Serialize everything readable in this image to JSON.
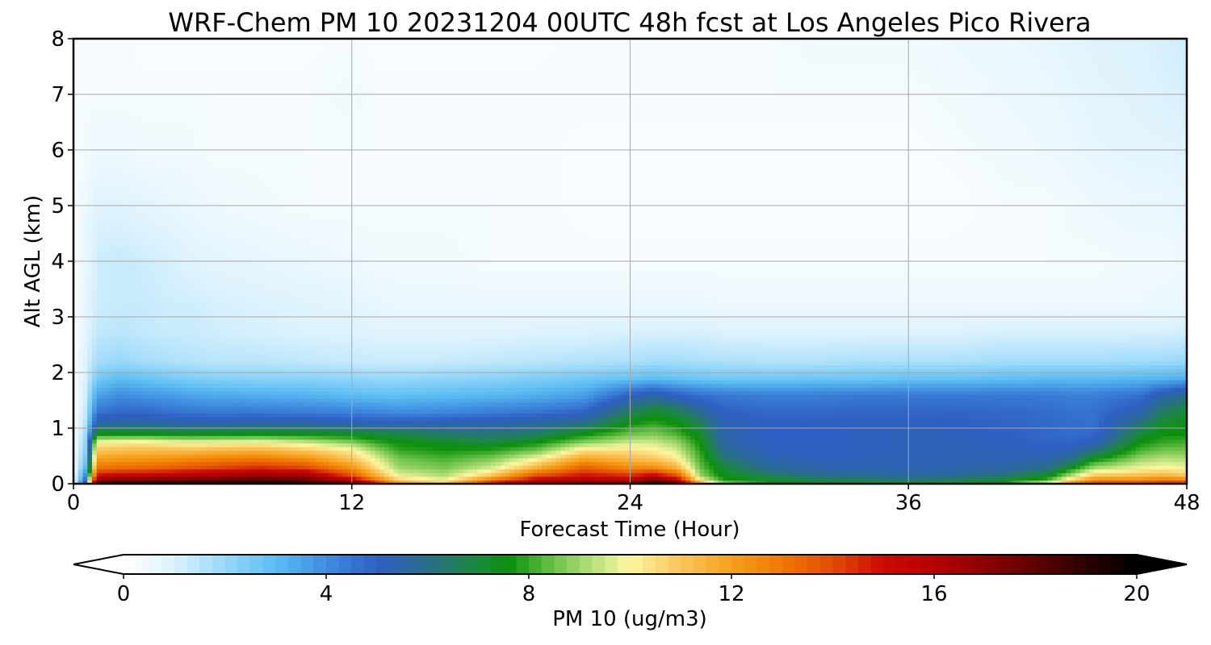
{
  "chart_data": {
    "type": "heatmap",
    "title": "WRF-Chem PM 10  20231204 00UTC 48h fcst at Los Angeles Pico Rivera",
    "xlabel": "Forecast Time (Hour)",
    "ylabel": "Alt AGL (km)",
    "xlim": [
      0,
      48
    ],
    "ylim": [
      0,
      8
    ],
    "xticks": [
      "0",
      "12",
      "24",
      "36",
      "48"
    ],
    "yticks": [
      "0",
      "1",
      "2",
      "3",
      "4",
      "5",
      "6",
      "7",
      "8"
    ],
    "grid": true,
    "colorbar": {
      "label": "PM 10  (ug/m3)",
      "range": [
        0,
        20
      ],
      "extend": "both",
      "orientation": "horizontal",
      "placement": "bottom",
      "ticks": [
        "0",
        "4",
        "8",
        "12",
        "16",
        "20"
      ],
      "stops": [
        {
          "v": 0,
          "c": "#ffffff"
        },
        {
          "v": 1,
          "c": "#dcf2fd"
        },
        {
          "v": 2,
          "c": "#96d8fa"
        },
        {
          "v": 3,
          "c": "#5cbdf2"
        },
        {
          "v": 4,
          "c": "#3f8ddf"
        },
        {
          "v": 5,
          "c": "#2f5fc3"
        },
        {
          "v": 6,
          "c": "#2a6e8a"
        },
        {
          "v": 7,
          "c": "#1a8a3a"
        },
        {
          "v": 7.6,
          "c": "#0c8f0c"
        },
        {
          "v": 8.5,
          "c": "#6cc24a"
        },
        {
          "v": 9.5,
          "c": "#cfe88a"
        },
        {
          "v": 10,
          "c": "#fdf7a0"
        },
        {
          "v": 11,
          "c": "#fbc45a"
        },
        {
          "v": 12,
          "c": "#f6a01c"
        },
        {
          "v": 13,
          "c": "#f07800"
        },
        {
          "v": 14,
          "c": "#e24b00"
        },
        {
          "v": 15,
          "c": "#cc0a00"
        },
        {
          "v": 16,
          "c": "#b60000"
        },
        {
          "v": 17,
          "c": "#8c0000"
        },
        {
          "v": 18,
          "c": "#5e0000"
        },
        {
          "v": 19,
          "c": "#2a0000"
        },
        {
          "v": 20,
          "c": "#000000"
        }
      ]
    },
    "hours": [
      0,
      0.5,
      1,
      2,
      3,
      4,
      5,
      6,
      8,
      10,
      12,
      13,
      14,
      16,
      18,
      20,
      22,
      24,
      25,
      26,
      27,
      28,
      30,
      32,
      34,
      36,
      38,
      40,
      42,
      43,
      44,
      46,
      47,
      48
    ],
    "altitudes_km": [
      0.0,
      0.05,
      0.15,
      0.3,
      0.45,
      0.6,
      0.75,
      0.9,
      1.1,
      1.3,
      1.6,
      1.9,
      2.2,
      2.7,
      3.2,
      4.0,
      5.0,
      6.0,
      7.0,
      8.0
    ],
    "profiles": [
      [
        0.5,
        0.5,
        0.4,
        0.3,
        0.3,
        0.3,
        0.3,
        0.2,
        0.2,
        0.2,
        0.2,
        0.2,
        0.2,
        0.2,
        0.2,
        0.2,
        0.2,
        0.2,
        0.2,
        0.2
      ],
      [
        6.0,
        5.0,
        4.0,
        3.0,
        2.5,
        2.2,
        2.0,
        1.8,
        1.5,
        1.3,
        1.1,
        1.0,
        0.9,
        0.8,
        0.7,
        0.6,
        0.5,
        0.4,
        0.3,
        0.3
      ],
      [
        19.0,
        17.5,
        15.0,
        13.0,
        12.0,
        11.0,
        10.0,
        7.5,
        5.5,
        4.5,
        3.5,
        2.5,
        1.8,
        1.4,
        1.2,
        1.2,
        0.9,
        0.5,
        0.3,
        0.3
      ],
      [
        19.5,
        18.0,
        15.5,
        13.2,
        12.2,
        11.2,
        10.2,
        7.5,
        5.6,
        4.8,
        4.0,
        3.0,
        2.0,
        1.5,
        1.3,
        1.3,
        0.9,
        0.5,
        0.3,
        0.3
      ],
      [
        19.5,
        18.0,
        15.5,
        13.3,
        12.3,
        11.2,
        10.3,
        7.5,
        5.6,
        4.8,
        3.8,
        2.8,
        1.8,
        1.4,
        1.3,
        1.2,
        0.8,
        0.4,
        0.3,
        0.2
      ],
      [
        19.6,
        18.2,
        15.8,
        13.5,
        12.4,
        11.3,
        10.0,
        7.4,
        5.5,
        4.6,
        3.7,
        2.6,
        1.7,
        1.3,
        1.2,
        1.1,
        0.7,
        0.4,
        0.3,
        0.2
      ],
      [
        19.6,
        18.3,
        16.0,
        13.8,
        12.6,
        11.2,
        9.8,
        7.4,
        5.4,
        4.5,
        3.5,
        2.4,
        1.6,
        1.3,
        1.2,
        0.9,
        0.6,
        0.4,
        0.3,
        0.2
      ],
      [
        19.6,
        18.4,
        16.3,
        14.0,
        12.8,
        11.4,
        9.9,
        7.4,
        5.4,
        4.4,
        3.4,
        2.3,
        1.5,
        1.2,
        1.1,
        0.8,
        0.5,
        0.3,
        0.3,
        0.2
      ],
      [
        19.7,
        18.8,
        16.8,
        14.5,
        13.0,
        11.5,
        10.0,
        7.5,
        5.5,
        4.4,
        3.3,
        2.2,
        1.5,
        1.1,
        1.0,
        0.7,
        0.4,
        0.3,
        0.3,
        0.2
      ],
      [
        19.5,
        18.3,
        16.5,
        14.0,
        12.5,
        11.0,
        9.5,
        7.4,
        5.5,
        4.3,
        3.2,
        2.2,
        1.4,
        1.0,
        0.9,
        0.6,
        0.3,
        0.3,
        0.3,
        0.2
      ],
      [
        18.5,
        16.5,
        14.0,
        12.3,
        11.0,
        10.2,
        8.8,
        7.2,
        5.3,
        4.2,
        3.0,
        2.1,
        1.3,
        1.0,
        0.8,
        0.5,
        0.3,
        0.3,
        0.4,
        0.3
      ],
      [
        16.0,
        13.5,
        11.8,
        10.5,
        9.8,
        9.0,
        8.0,
        7.0,
        5.2,
        4.1,
        2.9,
        2.0,
        1.3,
        0.9,
        0.7,
        0.4,
        0.3,
        0.3,
        0.3,
        0.2
      ],
      [
        12.5,
        11.0,
        9.8,
        9.0,
        8.6,
        8.0,
        7.6,
        6.8,
        5.2,
        4.0,
        2.9,
        2.0,
        1.3,
        0.9,
        0.6,
        0.4,
        0.3,
        0.3,
        0.3,
        0.2
      ],
      [
        11.5,
        10.0,
        9.2,
        8.6,
        8.2,
        7.7,
        7.3,
        6.4,
        5.3,
        4.1,
        3.0,
        2.1,
        1.3,
        0.9,
        0.6,
        0.4,
        0.3,
        0.3,
        0.3,
        0.2
      ],
      [
        15.5,
        13.5,
        11.0,
        9.5,
        8.7,
        7.9,
        7.0,
        6.2,
        5.4,
        4.3,
        3.1,
        2.2,
        1.4,
        0.9,
        0.6,
        0.3,
        0.3,
        0.3,
        0.3,
        0.2
      ],
      [
        17.5,
        16.0,
        14.0,
        11.5,
        10.0,
        8.6,
        7.6,
        6.5,
        5.6,
        4.5,
        3.3,
        2.4,
        1.5,
        1.0,
        0.6,
        0.3,
        0.3,
        0.3,
        0.3,
        0.2
      ],
      [
        17.8,
        16.5,
        15.0,
        13.5,
        12.0,
        10.5,
        8.8,
        7.5,
        6.0,
        4.9,
        3.6,
        2.6,
        1.6,
        1.0,
        0.6,
        0.3,
        0.2,
        0.2,
        0.3,
        0.3
      ],
      [
        18.0,
        16.2,
        14.5,
        12.5,
        11.3,
        10.5,
        9.5,
        8.5,
        7.5,
        6.6,
        5.0,
        2.8,
        1.7,
        1.1,
        0.6,
        0.3,
        0.2,
        0.2,
        0.3,
        0.3
      ],
      [
        20.0,
        18.0,
        15.5,
        12.5,
        11.0,
        10.2,
        9.5,
        8.7,
        7.9,
        7.2,
        5.5,
        3.0,
        1.8,
        1.1,
        0.6,
        0.3,
        0.2,
        0.2,
        0.3,
        0.3
      ],
      [
        18.5,
        16.5,
        14.0,
        11.5,
        10.3,
        9.6,
        9.0,
        8.2,
        7.5,
        6.8,
        5.0,
        2.8,
        1.8,
        1.1,
        0.6,
        0.3,
        0.2,
        0.2,
        0.3,
        0.3
      ],
      [
        13.0,
        10.5,
        9.0,
        8.5,
        8.2,
        7.9,
        7.6,
        7.2,
        6.6,
        5.8,
        4.6,
        2.7,
        1.7,
        1.1,
        0.6,
        0.3,
        0.2,
        0.2,
        0.3,
        0.3
      ],
      [
        9.5,
        8.0,
        7.4,
        7.0,
        6.4,
        5.9,
        5.6,
        5.4,
        5.3,
        5.0,
        4.4,
        2.6,
        1.7,
        1.0,
        0.5,
        0.3,
        0.2,
        0.2,
        0.3,
        0.3
      ],
      [
        8.0,
        7.4,
        6.6,
        5.8,
        5.4,
        5.1,
        5.0,
        5.0,
        5.0,
        4.8,
        4.3,
        2.6,
        1.6,
        1.0,
        0.5,
        0.3,
        0.2,
        0.2,
        0.3,
        0.3
      ],
      [
        7.6,
        7.0,
        6.0,
        5.4,
        5.2,
        5.0,
        5.0,
        5.0,
        5.0,
        4.8,
        4.3,
        2.7,
        1.6,
        1.0,
        0.5,
        0.3,
        0.2,
        0.2,
        0.3,
        0.4
      ],
      [
        7.4,
        6.8,
        5.8,
        5.3,
        5.2,
        5.1,
        5.1,
        5.1,
        5.1,
        4.9,
        4.4,
        2.7,
        1.7,
        1.0,
        0.5,
        0.3,
        0.2,
        0.2,
        0.3,
        0.4
      ],
      [
        7.3,
        6.6,
        5.6,
        5.3,
        5.2,
        5.2,
        5.2,
        5.2,
        5.1,
        4.9,
        4.4,
        2.8,
        1.7,
        1.0,
        0.5,
        0.3,
        0.2,
        0.2,
        0.3,
        0.4
      ],
      [
        7.5,
        6.8,
        5.8,
        5.4,
        5.3,
        5.2,
        5.2,
        5.1,
        5.0,
        4.9,
        4.4,
        2.8,
        1.7,
        1.0,
        0.5,
        0.3,
        0.2,
        0.3,
        0.4,
        0.5
      ],
      [
        8.0,
        7.2,
        6.2,
        5.5,
        5.3,
        5.2,
        5.1,
        5.0,
        4.9,
        4.8,
        4.4,
        2.9,
        1.8,
        1.1,
        0.5,
        0.3,
        0.3,
        0.4,
        0.5,
        0.6
      ],
      [
        10.5,
        8.5,
        7.2,
        6.0,
        5.4,
        5.1,
        4.9,
        4.8,
        4.8,
        4.7,
        4.4,
        3.0,
        1.8,
        1.1,
        0.5,
        0.3,
        0.3,
        0.5,
        0.6,
        0.7
      ],
      [
        13.0,
        11.0,
        9.2,
        7.3,
        6.0,
        5.3,
        4.9,
        4.7,
        4.7,
        4.6,
        4.3,
        3.0,
        1.8,
        1.1,
        0.5,
        0.3,
        0.4,
        0.6,
        0.7,
        0.8
      ],
      [
        14.5,
        13.0,
        11.0,
        9.0,
        7.5,
        6.2,
        5.2,
        4.8,
        4.6,
        4.6,
        4.3,
        3.0,
        1.8,
        1.1,
        0.5,
        0.3,
        0.5,
        0.7,
        0.8,
        0.9
      ],
      [
        14.5,
        13.0,
        11.2,
        9.8,
        9.0,
        8.2,
        7.6,
        7.0,
        6.2,
        5.4,
        4.6,
        3.1,
        1.9,
        1.1,
        0.5,
        0.4,
        0.6,
        0.8,
        0.9,
        1.0
      ],
      [
        15.0,
        13.5,
        11.5,
        10.0,
        9.3,
        8.6,
        8.0,
        7.6,
        7.2,
        6.6,
        5.5,
        3.2,
        1.9,
        1.1,
        0.6,
        0.4,
        0.6,
        0.8,
        1.0,
        1.1
      ],
      [
        15.0,
        13.2,
        11.0,
        9.8,
        9.2,
        8.6,
        8.1,
        7.6,
        7.3,
        7.0,
        6.0,
        3.3,
        2.0,
        1.2,
        0.6,
        0.5,
        0.7,
        0.9,
        1.1,
        1.2
      ]
    ]
  }
}
